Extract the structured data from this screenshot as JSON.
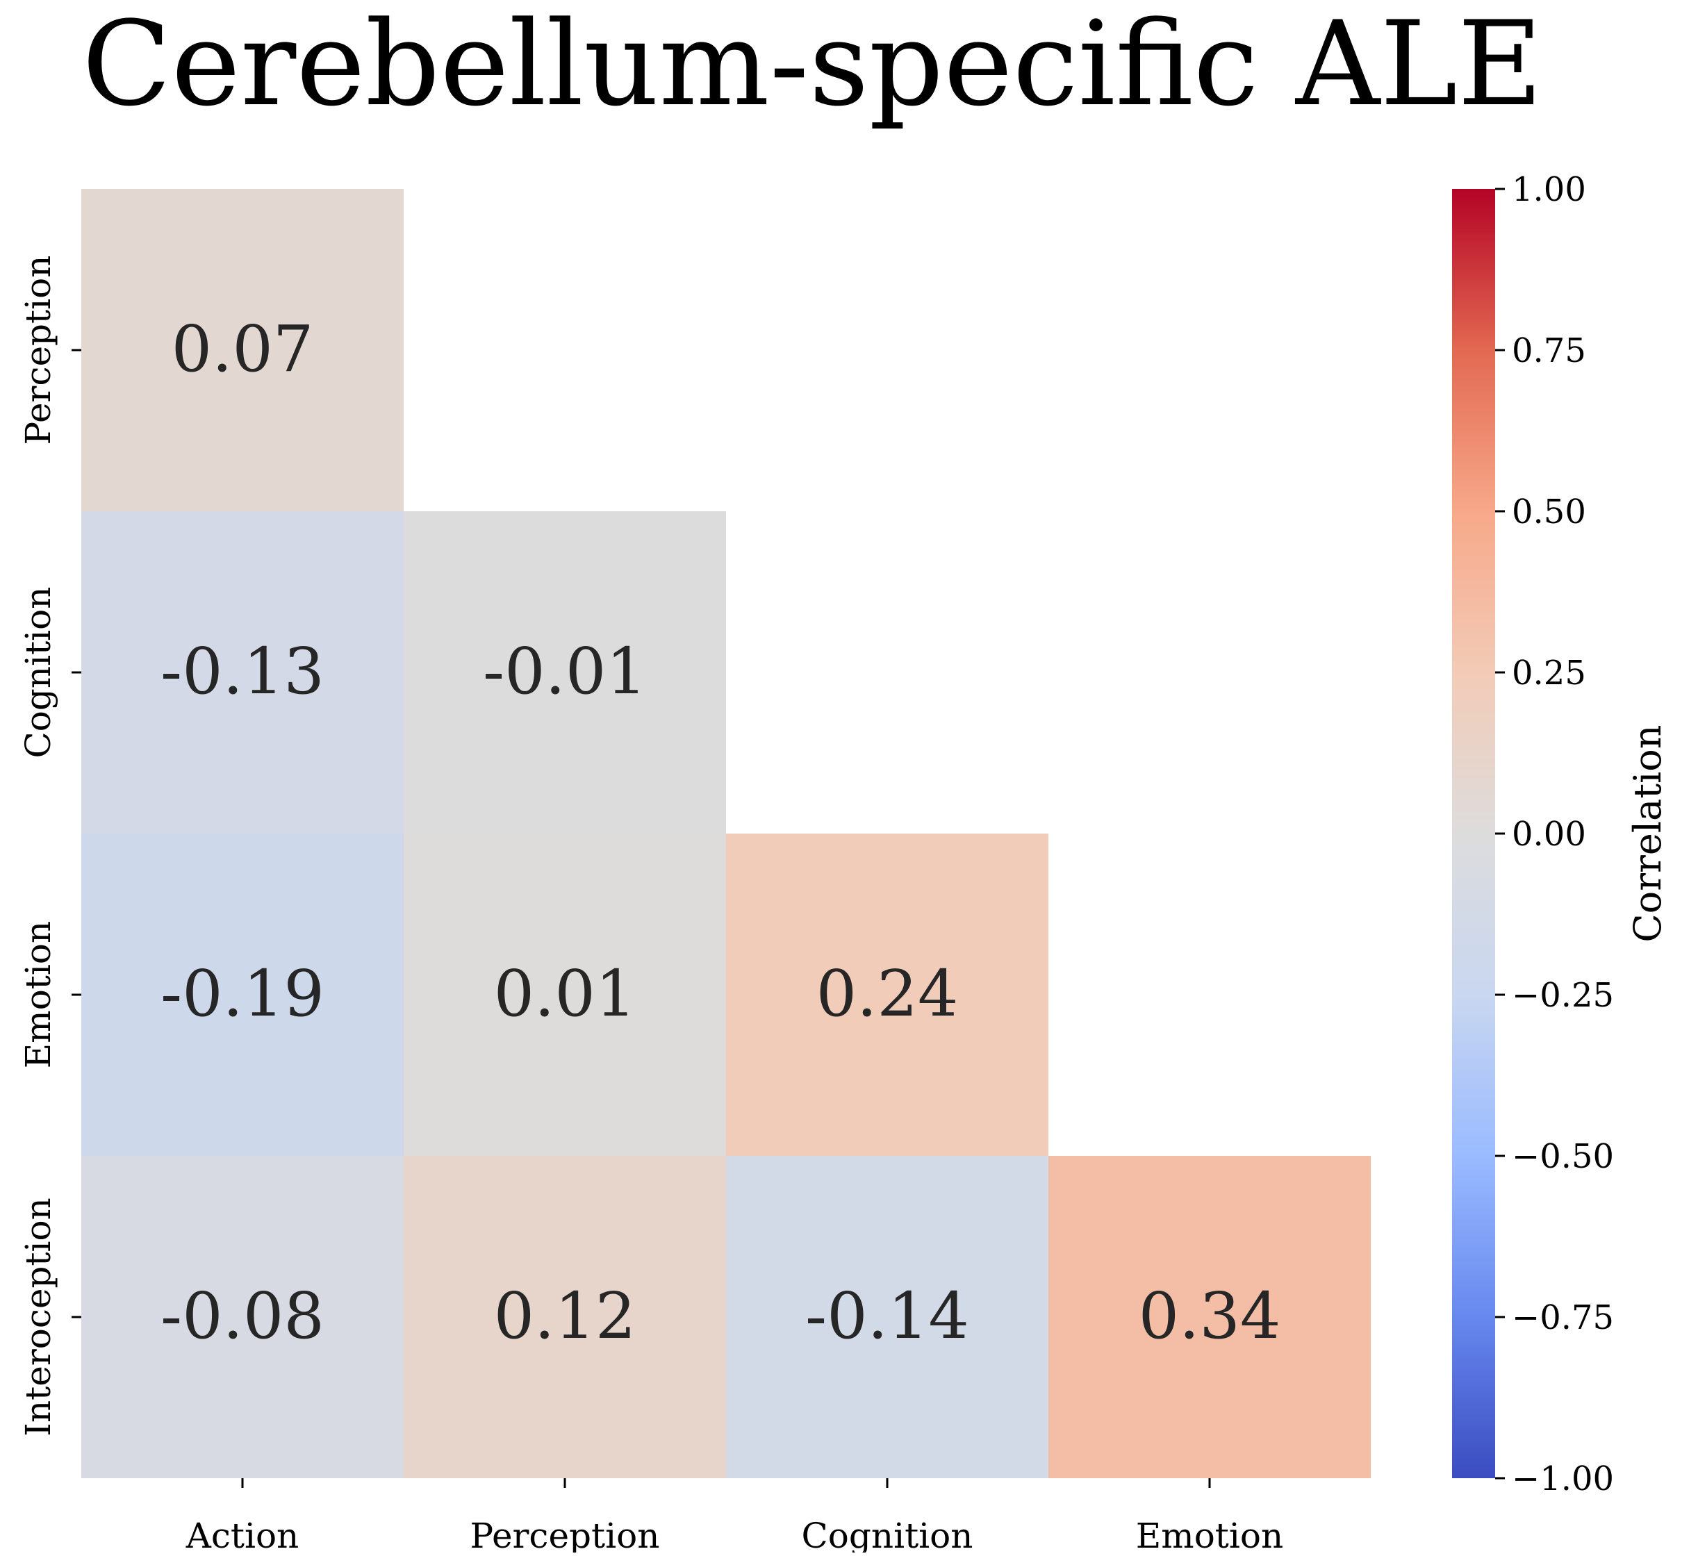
{
  "chart_data": {
    "type": "heatmap",
    "title": "Cerebellum-specific ALE",
    "x_categories": [
      "Action",
      "Perception",
      "Cognition",
      "Emotion"
    ],
    "y_categories": [
      "Perception",
      "Cognition",
      "Emotion",
      "Interoception"
    ],
    "cells": [
      {
        "row": "Perception",
        "col": "Action",
        "value": 0.07,
        "label": "0.07"
      },
      {
        "row": "Cognition",
        "col": "Action",
        "value": -0.13,
        "label": "-0.13"
      },
      {
        "row": "Cognition",
        "col": "Perception",
        "value": -0.01,
        "label": "-0.01"
      },
      {
        "row": "Emotion",
        "col": "Action",
        "value": -0.19,
        "label": "-0.19"
      },
      {
        "row": "Emotion",
        "col": "Perception",
        "value": 0.01,
        "label": "0.01"
      },
      {
        "row": "Emotion",
        "col": "Cognition",
        "value": 0.24,
        "label": "0.24"
      },
      {
        "row": "Interoception",
        "col": "Action",
        "value": -0.08,
        "label": "-0.08"
      },
      {
        "row": "Interoception",
        "col": "Perception",
        "value": 0.12,
        "label": "0.12"
      },
      {
        "row": "Interoception",
        "col": "Cognition",
        "value": -0.14,
        "label": "-0.14"
      },
      {
        "row": "Interoception",
        "col": "Emotion",
        "value": 0.34,
        "label": "0.34"
      }
    ],
    "colorbar": {
      "label": "Correlation",
      "vmin": -1.0,
      "vmax": 1.0,
      "ticks": [
        1.0,
        0.75,
        0.5,
        0.25,
        0.0,
        -0.25,
        -0.5,
        -0.75,
        -1.0
      ],
      "tick_labels": [
        "1.00",
        "0.75",
        "0.50",
        "0.25",
        "0.00",
        "−0.25",
        "−0.50",
        "−0.75",
        "−1.00"
      ],
      "colormap": "coolwarm",
      "color_stops": [
        "#3b4cc0",
        "#6788ee",
        "#9abbff",
        "#c9d7f0",
        "#dddcdc",
        "#f2cbb7",
        "#f7a889",
        "#e26952",
        "#b40426"
      ]
    },
    "masked": "upper-triangle",
    "grid": false
  }
}
